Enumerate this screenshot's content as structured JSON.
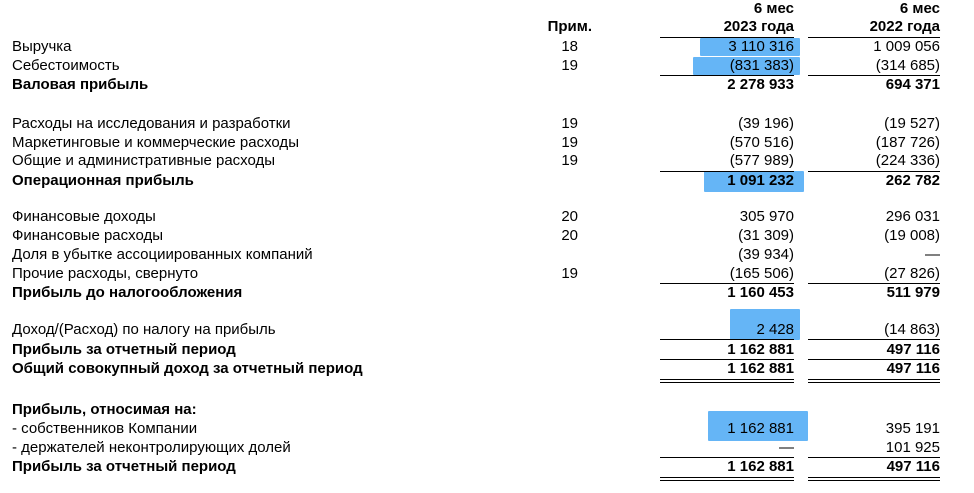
{
  "header": {
    "note_label": "Прим.",
    "col1": {
      "line1": "6 мес",
      "line2": "2023 года"
    },
    "col2": {
      "line1": "6 мес",
      "line2": "2022 года"
    }
  },
  "rows": [
    {
      "label": "Выручка",
      "note": "18",
      "v1": "3 110 316",
      "v2": "1 009 056"
    },
    {
      "label": "Себестоимость",
      "note": "19",
      "v1": "(831 383)",
      "v2": "(314 685)"
    },
    {
      "label": "Валовая прибыль",
      "note": "",
      "v1": "2 278 933",
      "v2": "694 371"
    },
    {
      "label": "Расходы на исследования и разработки",
      "note": "19",
      "v1": "(39 196)",
      "v2": "(19 527)"
    },
    {
      "label": "Маркетинговые и коммерческие расходы",
      "note": "19",
      "v1": "(570 516)",
      "v2": "(187 726)"
    },
    {
      "label": "Общие и административные расходы",
      "note": "19",
      "v1": "(577 989)",
      "v2": "(224 336)"
    },
    {
      "label": "Операционная прибыль",
      "note": "",
      "v1": "1 091 232",
      "v2": "262 782"
    },
    {
      "label": "Финансовые доходы",
      "note": "20",
      "v1": "305 970",
      "v2": "296 031"
    },
    {
      "label": "Финансовые расходы",
      "note": "20",
      "v1": "(31 309)",
      "v2": "(19 008)"
    },
    {
      "label": "Доля в убытке ассоциированных компаний",
      "note": "",
      "v1": "(39 934)",
      "v2": "—"
    },
    {
      "label": "Прочие расходы, свернуто",
      "note": "19",
      "v1": "(165 506)",
      "v2": "(27 826)"
    },
    {
      "label": "Прибыль до налогообложения",
      "note": "",
      "v1": "1 160 453",
      "v2": "511 979"
    },
    {
      "label": "Доход/(Расход) по налогу на прибыль",
      "note": "",
      "v1": "2 428",
      "v2": "(14 863)"
    },
    {
      "label": "Прибыль за отчетный период",
      "note": "",
      "v1": "1 162 881",
      "v2": "497 116"
    },
    {
      "label": "Общий совокупный доход за отчетный период",
      "note": "",
      "v1": "1 162 881",
      "v2": "497 116"
    },
    {
      "label": "Прибыль, относимая на:",
      "note": "",
      "v1": "",
      "v2": ""
    },
    {
      "label": "- собственников Компании",
      "note": "",
      "v1": "1 162 881",
      "v2": "395 191"
    },
    {
      "label": "- держателей неконтролирующих долей",
      "note": "",
      "v1": "—",
      "v2": "101 925"
    },
    {
      "label": "Прибыль за отчетный период",
      "note": "",
      "v1": "1 162 881",
      "v2": "497 116"
    }
  ],
  "highlight_color": "#4aa8f4"
}
